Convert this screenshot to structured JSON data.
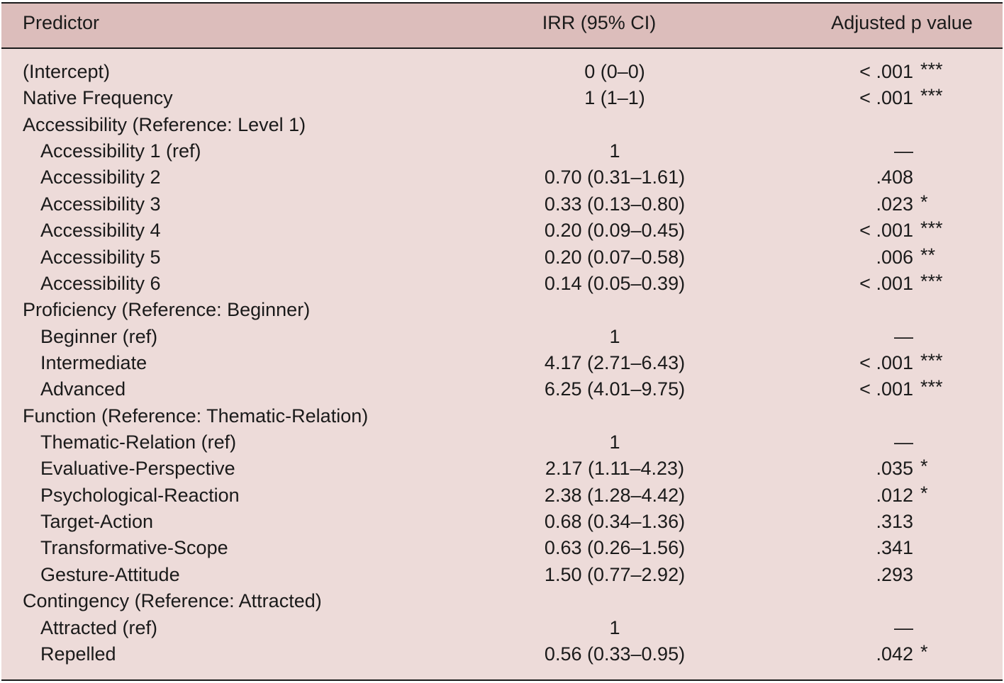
{
  "table": {
    "header": [
      "Predictor",
      "IRR (95% CI)",
      "Adjusted p value"
    ],
    "rows": [
      {
        "predictor": "(Intercept)",
        "irr": "0 (0–0)",
        "p": "< .001",
        "sig": "***"
      },
      {
        "predictor": "Native Frequency",
        "irr": "1 (1–1)",
        "p": "< .001",
        "sig": "***"
      }
    ],
    "groups": [
      {
        "label": "Accessibility (Reference: Level 1)",
        "rows": [
          {
            "predictor": "Accessibility 1 (ref)",
            "irr": "1",
            "p": "—"
          },
          {
            "predictor": "Accessibility 2",
            "irr": "0.70 (0.31–1.61)",
            "p": ".408"
          },
          {
            "predictor": "Accessibility 3",
            "irr": "0.33 (0.13–0.80)",
            "p": ".023",
            "sig": "*"
          },
          {
            "predictor": "Accessibility 4",
            "irr": "0.20 (0.09–0.45)",
            "p": "< .001",
            "sig": "***"
          },
          {
            "predictor": "Accessibility 5",
            "irr": "0.20 (0.07–0.58)",
            "p": ".006",
            "sig": "**"
          },
          {
            "predictor": "Accessibility 6",
            "irr": "0.14 (0.05–0.39)",
            "p": "< .001",
            "sig": "***"
          }
        ]
      },
      {
        "label": "Proficiency (Reference: Beginner)",
        "rows": [
          {
            "predictor": "Beginner (ref)",
            "irr": "1",
            "p": "—"
          },
          {
            "predictor": "Intermediate",
            "irr": "4.17 (2.71–6.43)",
            "p": "< .001",
            "sig": "***"
          },
          {
            "predictor": "Advanced",
            "irr": "6.25 (4.01–9.75)",
            "p": "< .001",
            "sig": "***"
          }
        ]
      },
      {
        "label": "Function (Reference: Thematic-Relation)",
        "rows": [
          {
            "predictor": "Thematic-Relation (ref)",
            "irr": "1",
            "p": "—"
          },
          {
            "predictor": "Evaluative-Perspective",
            "irr": "2.17 (1.11–4.23)",
            "p": ".035",
            "sig": "*"
          },
          {
            "predictor": "Psychological-Reaction",
            "irr": "2.38 (1.28–4.42)",
            "p": ".012",
            "sig": "*"
          },
          {
            "predictor": "Target-Action",
            "irr": "0.68 (0.34–1.36)",
            "p": ".313"
          },
          {
            "predictor": "Transformative-Scope",
            "irr": "0.63 (0.26–1.56)",
            "p": ".341"
          },
          {
            "predictor": "Gesture-Attitude",
            "irr": "1.50 (0.77–2.92)",
            "p": ".293"
          }
        ]
      },
      {
        "label": "Contingency (Reference: Attracted)",
        "rows": [
          {
            "predictor": "Attracted (ref)",
            "irr": "1",
            "p": "—"
          },
          {
            "predictor": "Repelled",
            "irr": "0.56 (0.33–0.95)",
            "p": ".042",
            "sig": "*"
          }
        ]
      }
    ]
  }
}
